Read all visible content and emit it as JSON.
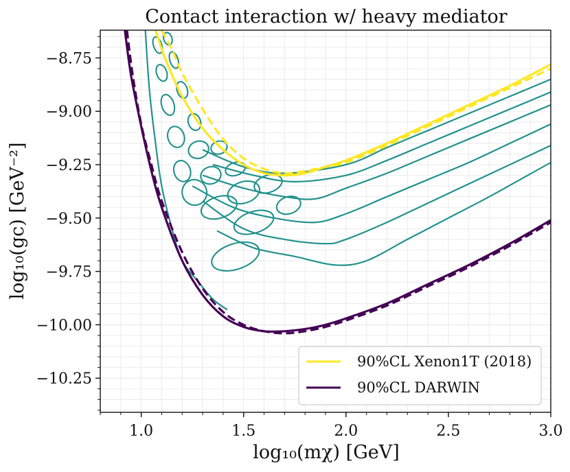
{
  "chart_data": {
    "type": "line",
    "title": "Contact interaction w/ heavy mediator",
    "xlabel": "log₁₀(mχ) [GeV]",
    "ylabel": "log₁₀(gc) [GeV⁻²]",
    "xlim": [
      0.8,
      3.0
    ],
    "ylim": [
      -10.41,
      -8.62
    ],
    "xticks": [
      1.0,
      1.5,
      2.0,
      2.5,
      3.0
    ],
    "xtick_labels": [
      "1.0",
      "1.5",
      "2.0",
      "2.5",
      "3.0"
    ],
    "yticks": [
      -8.75,
      -9.0,
      -9.25,
      -9.5,
      -9.75,
      -10.0,
      -10.25
    ],
    "ytick_labels": [
      "−8.75",
      "−9.00",
      "−9.25",
      "−9.50",
      "−9.75",
      "−10.00",
      "−10.25"
    ],
    "grid": true,
    "legend_position": "lower-right",
    "colors": {
      "xenon": "#fde725",
      "darwin": "#440154",
      "contour": "#21918c"
    },
    "series": [
      {
        "name": "90%CL Xenon1T (2018)",
        "style": "solid",
        "in_legend": true,
        "x": [
          1.07,
          1.12,
          1.2,
          1.3,
          1.4,
          1.5,
          1.6,
          1.7,
          1.8,
          1.9,
          2.0,
          2.2,
          2.4,
          2.6,
          2.8,
          3.0
        ],
        "y": [
          -8.62,
          -8.76,
          -8.93,
          -9.08,
          -9.18,
          -9.25,
          -9.29,
          -9.3,
          -9.29,
          -9.26,
          -9.23,
          -9.15,
          -9.06,
          -8.97,
          -8.88,
          -8.78
        ]
      },
      {
        "name": "Xenon1T (dashed)",
        "style": "dashed",
        "in_legend": false,
        "x": [
          1.1,
          1.15,
          1.2,
          1.3,
          1.4,
          1.5,
          1.6,
          1.7,
          1.8,
          1.9,
          2.0,
          2.2,
          2.4,
          2.6,
          2.8,
          3.0
        ],
        "y": [
          -8.62,
          -8.71,
          -8.82,
          -8.99,
          -9.13,
          -9.22,
          -9.27,
          -9.29,
          -9.28,
          -9.26,
          -9.24,
          -9.16,
          -9.07,
          -8.98,
          -8.89,
          -8.8
        ]
      },
      {
        "name": "90%CL DARWIN",
        "style": "solid",
        "in_legend": true,
        "x": [
          0.92,
          0.95,
          1.0,
          1.05,
          1.1,
          1.2,
          1.3,
          1.4,
          1.5,
          1.6,
          1.7,
          1.8,
          1.9,
          2.0,
          2.2,
          2.4,
          2.6,
          2.8,
          3.0
        ],
        "y": [
          -8.62,
          -8.83,
          -9.07,
          -9.28,
          -9.45,
          -9.7,
          -9.86,
          -9.96,
          -10.01,
          -10.03,
          -10.03,
          -10.02,
          -10.0,
          -9.97,
          -9.9,
          -9.81,
          -9.72,
          -9.62,
          -9.51
        ]
      },
      {
        "name": "DARWIN (dashed)",
        "style": "dashed",
        "in_legend": false,
        "x": [
          0.93,
          0.96,
          1.0,
          1.05,
          1.1,
          1.2,
          1.3,
          1.4,
          1.5,
          1.6,
          1.7,
          1.8,
          1.9,
          2.0,
          2.2,
          2.4,
          2.6,
          2.8,
          3.0
        ],
        "y": [
          -8.62,
          -8.84,
          -9.06,
          -9.25,
          -9.42,
          -9.66,
          -9.83,
          -9.94,
          -10.0,
          -10.03,
          -10.04,
          -10.03,
          -10.01,
          -9.98,
          -9.91,
          -9.82,
          -9.73,
          -9.63,
          -9.52
        ]
      }
    ],
    "contour_lines": [
      {
        "x": [
          1.3,
          1.5,
          1.7,
          2.0,
          2.2,
          2.4,
          2.6,
          2.8,
          3.0
        ],
        "y": [
          -9.18,
          -9.26,
          -9.29,
          -9.25,
          -9.17,
          -9.09,
          -9.01,
          -8.93,
          -8.85
        ]
      },
      {
        "x": [
          1.35,
          1.55,
          1.75,
          2.0,
          2.2,
          2.4,
          2.6,
          2.8,
          3.0
        ],
        "y": [
          -9.25,
          -9.3,
          -9.33,
          -9.3,
          -9.23,
          -9.15,
          -9.07,
          -8.99,
          -8.91
        ]
      },
      {
        "x": [
          1.3,
          1.5,
          1.7,
          1.85,
          2.0,
          2.2,
          2.4,
          2.6,
          2.8,
          3.0
        ],
        "y": [
          -9.3,
          -9.36,
          -9.4,
          -9.41,
          -9.36,
          -9.29,
          -9.21,
          -9.13,
          -9.05,
          -8.97
        ]
      },
      {
        "x": [
          1.25,
          1.45,
          1.65,
          1.85,
          2.0,
          2.2,
          2.4,
          2.6,
          2.8,
          3.0
        ],
        "y": [
          -9.35,
          -9.45,
          -9.5,
          -9.52,
          -9.48,
          -9.4,
          -9.32,
          -9.24,
          -9.15,
          -9.06
        ]
      },
      {
        "x": [
          1.3,
          1.5,
          1.7,
          1.9,
          2.0,
          2.2,
          2.4,
          2.6,
          2.8,
          3.0
        ],
        "y": [
          -9.42,
          -9.55,
          -9.6,
          -9.62,
          -9.6,
          -9.52,
          -9.43,
          -9.34,
          -9.25,
          -9.16
        ]
      },
      {
        "x": [
          1.37,
          1.55,
          1.75,
          1.95,
          2.1,
          2.3,
          2.5,
          2.7,
          2.85,
          3.0
        ],
        "y": [
          -9.56,
          -9.64,
          -9.68,
          -9.72,
          -9.7,
          -9.6,
          -9.5,
          -9.4,
          -9.32,
          -9.24
        ]
      }
    ],
    "contour_blobs": [
      {
        "x": 1.5,
        "y": -9.38,
        "dx": 0.08,
        "dy": 0.05
      },
      {
        "x": 1.62,
        "y": -9.34,
        "dx": 0.07,
        "dy": 0.04
      },
      {
        "x": 1.72,
        "y": -9.44,
        "dx": 0.06,
        "dy": 0.04
      },
      {
        "x": 1.38,
        "y": -9.45,
        "dx": 0.09,
        "dy": 0.05
      },
      {
        "x": 1.55,
        "y": -9.52,
        "dx": 0.1,
        "dy": 0.05
      },
      {
        "x": 1.46,
        "y": -9.68,
        "dx": 0.12,
        "dy": 0.06
      },
      {
        "x": 1.26,
        "y": -9.38,
        "dx": 0.06,
        "dy": 0.06
      },
      {
        "x": 1.34,
        "y": -9.3,
        "dx": 0.05,
        "dy": 0.04
      },
      {
        "x": 1.46,
        "y": -9.27,
        "dx": 0.05,
        "dy": 0.03
      },
      {
        "x": 1.2,
        "y": -9.28,
        "dx": 0.04,
        "dy": 0.05
      },
      {
        "x": 1.28,
        "y": -9.18,
        "dx": 0.05,
        "dy": 0.04
      },
      {
        "x": 1.38,
        "y": -9.17,
        "dx": 0.04,
        "dy": 0.03
      },
      {
        "x": 1.17,
        "y": -9.12,
        "dx": 0.04,
        "dy": 0.05
      },
      {
        "x": 1.26,
        "y": -9.05,
        "dx": 0.03,
        "dy": 0.04
      },
      {
        "x": 1.13,
        "y": -8.97,
        "dx": 0.03,
        "dy": 0.05
      },
      {
        "x": 1.2,
        "y": -8.9,
        "dx": 0.025,
        "dy": 0.04
      },
      {
        "x": 1.1,
        "y": -8.82,
        "dx": 0.025,
        "dy": 0.04
      },
      {
        "x": 1.16,
        "y": -8.76,
        "dx": 0.02,
        "dy": 0.04
      },
      {
        "x": 1.08,
        "y": -8.69,
        "dx": 0.02,
        "dy": 0.04
      },
      {
        "x": 1.13,
        "y": -8.66,
        "dx": 0.02,
        "dy": 0.03
      }
    ],
    "contour_envelope": {
      "x": [
        1.02,
        1.04,
        1.07,
        1.1,
        1.15,
        1.2,
        1.28,
        1.35,
        1.42
      ],
      "y": [
        -8.62,
        -8.9,
        -9.15,
        -9.35,
        -9.55,
        -9.7,
        -9.8,
        -9.88,
        -9.93
      ]
    },
    "legend": {
      "items": [
        {
          "label": "90%CL Xenon1T (2018)",
          "color": "#fde725"
        },
        {
          "label": "90%CL DARWIN",
          "color": "#440154"
        }
      ]
    }
  }
}
